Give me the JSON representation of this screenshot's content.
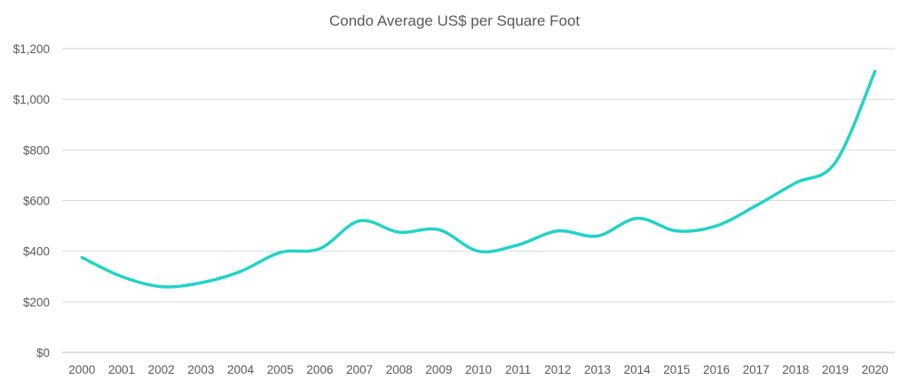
{
  "chart_data": {
    "type": "line",
    "title": "Condo Average US$ per Square Foot",
    "xlabel": "",
    "ylabel": "",
    "x": [
      "2000",
      "2001",
      "2002",
      "2003",
      "2004",
      "2005",
      "2006",
      "2007",
      "2008",
      "2009",
      "2010",
      "2011",
      "2012",
      "2013",
      "2014",
      "2015",
      "2016",
      "2017",
      "2018",
      "2019",
      "2020"
    ],
    "series": [
      {
        "values": [
          375,
          300,
          260,
          275,
          320,
          395,
          410,
          520,
          475,
          485,
          400,
          425,
          480,
          460,
          530,
          480,
          500,
          580,
          670,
          750,
          1110
        ]
      }
    ],
    "ylim": [
      0,
      1200
    ],
    "yticks": [
      0,
      200,
      400,
      600,
      800,
      1000,
      1200
    ],
    "ytick_labels": [
      "$0",
      "$200",
      "$400",
      "$600",
      "$800",
      "$1,000",
      "$1,200"
    ],
    "grid": true,
    "line_color": "#22d3c5",
    "smooth": true
  }
}
